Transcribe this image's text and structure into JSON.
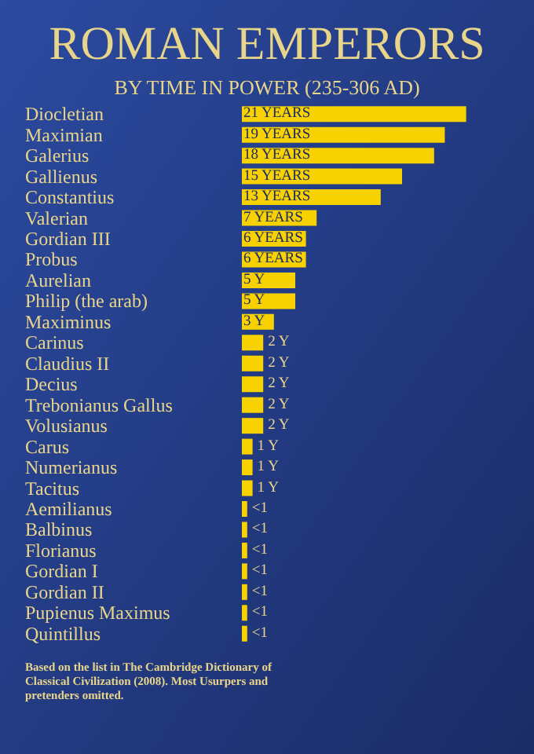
{
  "chart_data": {
    "type": "bar",
    "orientation": "horizontal",
    "title": "ROMAN EMPERORS",
    "subtitle": "BY TIME IN POWER (235-306 AD)",
    "categories": [
      "Diocletian",
      "Maximian",
      "Galerius",
      "Gallienus",
      "Constantius",
      "Valerian",
      "Gordian III",
      "Probus",
      "Aurelian",
      "Philip (the arab)",
      "Maximinus",
      "Carinus",
      "Claudius II",
      "Decius",
      "Trebonianus Gallus",
      "Volusianus",
      "Carus",
      "Numerianus",
      "Tacitus",
      "Aemilianus",
      "Balbinus",
      "Florianus",
      "Gordian I",
      "Gordian II",
      "Pupienus Maximus",
      "Quintillus"
    ],
    "values": [
      21,
      19,
      18,
      15,
      13,
      7,
      6,
      6,
      5,
      5,
      3,
      2,
      2,
      2,
      2,
      2,
      1,
      1,
      1,
      0.5,
      0.5,
      0.5,
      0.5,
      0.5,
      0.5,
      0.5
    ],
    "value_labels": [
      "21 YEARS",
      "19 YEARS",
      "18 YEARS",
      "15 YEARS",
      "13 YEARS",
      "7 YEARS",
      "6 YEARS",
      "6 YEARS",
      "5 Y",
      "5 Y",
      "3 Y",
      "2 Y",
      "2 Y",
      "2 Y",
      "2 Y",
      "2 Y",
      "1 Y",
      "1 Y",
      "1 Y",
      "<1",
      "<1",
      "<1",
      "<1",
      "<1",
      "<1",
      "<1"
    ],
    "color": "#f7d200",
    "annotations": [
      "Based on the list in The Cambridge Dictionary of Classical Civilization (2008). Most Usurpers and pretenders omitted."
    ]
  }
}
